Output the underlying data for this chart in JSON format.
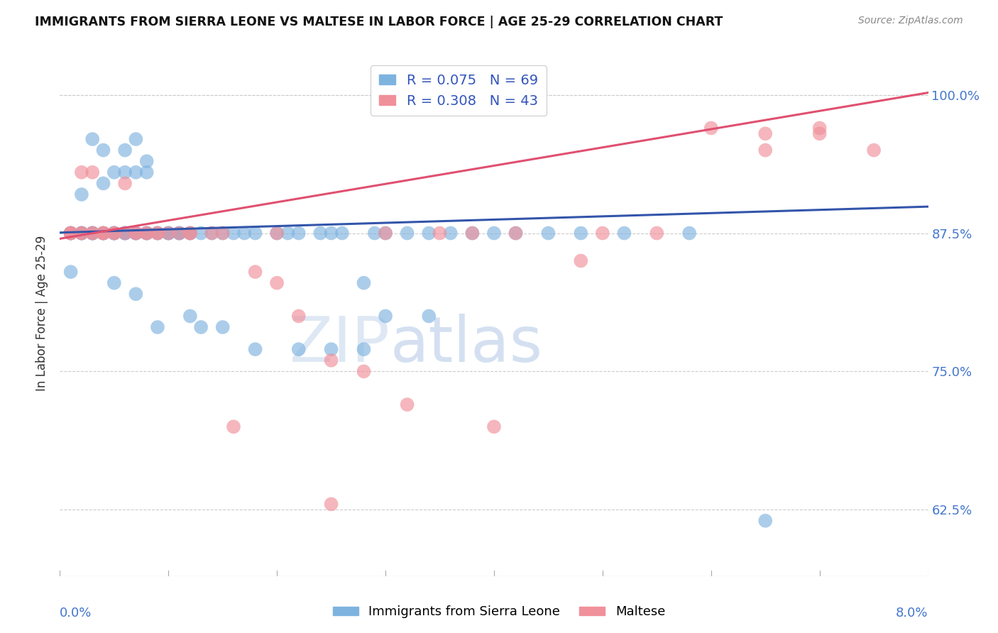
{
  "title": "IMMIGRANTS FROM SIERRA LEONE VS MALTESE IN LABOR FORCE | AGE 25-29 CORRELATION CHART",
  "source": "Source: ZipAtlas.com",
  "ylabel": "In Labor Force | Age 25-29",
  "xmin": 0.0,
  "xmax": 0.08,
  "ymin": 0.565,
  "ymax": 1.04,
  "legend1_label": "R = 0.075   N = 69",
  "legend2_label": "R = 0.308   N = 43",
  "watermark_part1": "ZIP",
  "watermark_part2": "atlas",
  "blue_color": "#7EB3E0",
  "pink_color": "#F0909A",
  "line_blue": "#3355AA",
  "line_pink": "#E05070",
  "ytick_vals": [
    0.625,
    0.75,
    0.875,
    1.0
  ],
  "ytick_labels": [
    "62.5%",
    "75.0%",
    "87.5%",
    "100.0%"
  ],
  "sl_line_y0": 0.8755,
  "sl_line_y1": 0.899,
  "m_line_y0": 0.87,
  "m_line_y1": 1.002,
  "sl_x": [
    0.001,
    0.001,
    0.001,
    0.001,
    0.002,
    0.002,
    0.002,
    0.002,
    0.002,
    0.003,
    0.003,
    0.003,
    0.003,
    0.003,
    0.004,
    0.004,
    0.004,
    0.004,
    0.005,
    0.005,
    0.005,
    0.005,
    0.006,
    0.006,
    0.006,
    0.006,
    0.006,
    0.007,
    0.007,
    0.007,
    0.007,
    0.008,
    0.008,
    0.008,
    0.008,
    0.009,
    0.009,
    0.01,
    0.01,
    0.011,
    0.011,
    0.012,
    0.012,
    0.013,
    0.014,
    0.015,
    0.016,
    0.017,
    0.018,
    0.02,
    0.021,
    0.022,
    0.024,
    0.025,
    0.026,
    0.028,
    0.029,
    0.03,
    0.032,
    0.034,
    0.036,
    0.038,
    0.04,
    0.042,
    0.045,
    0.048,
    0.052,
    0.058,
    0.065
  ],
  "sl_y": [
    0.875,
    0.875,
    0.875,
    0.84,
    0.875,
    0.875,
    0.91,
    0.875,
    0.875,
    0.875,
    0.875,
    0.875,
    0.875,
    0.875,
    0.92,
    0.875,
    0.875,
    0.875,
    0.875,
    0.875,
    0.875,
    0.875,
    0.93,
    0.875,
    0.875,
    0.875,
    0.875,
    0.875,
    0.875,
    0.93,
    0.875,
    0.875,
    0.875,
    0.93,
    0.875,
    0.875,
    0.875,
    0.875,
    0.875,
    0.875,
    0.875,
    0.875,
    0.875,
    0.875,
    0.875,
    0.875,
    0.875,
    0.875,
    0.875,
    0.875,
    0.875,
    0.875,
    0.875,
    0.875,
    0.875,
    0.83,
    0.875,
    0.875,
    0.875,
    0.875,
    0.875,
    0.875,
    0.875,
    0.875,
    0.875,
    0.875,
    0.875,
    0.875,
    0.615
  ],
  "sl_outliers_x": [
    0.003,
    0.004,
    0.005,
    0.006,
    0.007,
    0.008,
    0.01,
    0.011,
    0.013,
    0.015,
    0.018,
    0.022,
    0.025,
    0.03,
    0.034,
    0.028,
    0.005,
    0.007,
    0.009,
    0.012
  ],
  "sl_outliers_y": [
    0.96,
    0.95,
    0.93,
    0.95,
    0.96,
    0.94,
    0.875,
    0.875,
    0.79,
    0.79,
    0.77,
    0.77,
    0.77,
    0.8,
    0.8,
    0.77,
    0.83,
    0.82,
    0.79,
    0.8
  ],
  "m_x": [
    0.001,
    0.001,
    0.002,
    0.002,
    0.003,
    0.003,
    0.004,
    0.004,
    0.005,
    0.006,
    0.006,
    0.007,
    0.008,
    0.008,
    0.009,
    0.01,
    0.011,
    0.012,
    0.014,
    0.015,
    0.018,
    0.02,
    0.022,
    0.025,
    0.028,
    0.032,
    0.038,
    0.042,
    0.048,
    0.055,
    0.065,
    0.07,
    0.075
  ],
  "m_y": [
    0.875,
    0.875,
    0.875,
    0.93,
    0.875,
    0.875,
    0.875,
    0.875,
    0.875,
    0.875,
    0.92,
    0.875,
    0.875,
    0.875,
    0.875,
    0.875,
    0.875,
    0.875,
    0.875,
    0.875,
    0.84,
    0.83,
    0.8,
    0.76,
    0.75,
    0.72,
    0.875,
    0.875,
    0.85,
    0.875,
    0.965,
    0.965,
    0.95
  ],
  "m_outliers_x": [
    0.001,
    0.002,
    0.003,
    0.004,
    0.005,
    0.007,
    0.009,
    0.012,
    0.016,
    0.02,
    0.025,
    0.03,
    0.035,
    0.04,
    0.05,
    0.06,
    0.065,
    0.07
  ],
  "m_outliers_y": [
    0.875,
    0.875,
    0.93,
    0.875,
    0.875,
    0.875,
    0.875,
    0.875,
    0.7,
    0.875,
    0.63,
    0.875,
    0.875,
    0.7,
    0.875,
    0.97,
    0.95,
    0.97
  ]
}
